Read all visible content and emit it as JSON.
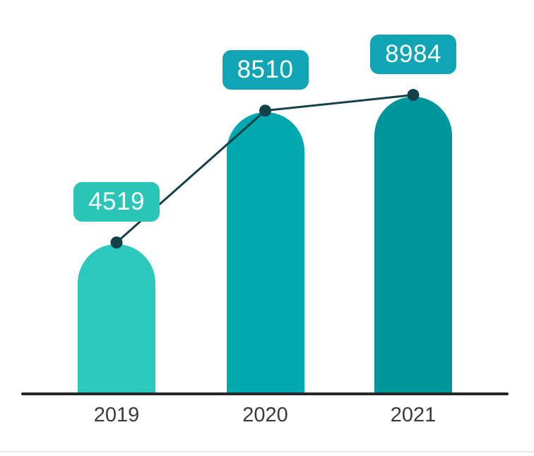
{
  "chart_data": {
    "type": "bar",
    "title": "",
    "categories": [
      "2019",
      "2020",
      "2021"
    ],
    "values": [
      4519,
      8510,
      8984
    ],
    "data_labels": [
      "4519",
      "8510",
      "8984"
    ],
    "xlabel": "",
    "ylabel": "",
    "ylim": [
      0,
      9600
    ],
    "grid": false,
    "legend": false,
    "overlay": "line with dark circular markers connecting bar tops, value badges above each bar",
    "bar_colors": [
      "#2CC8BB",
      "#00A8B0",
      "#00969C"
    ],
    "badge_colors": [
      "#2BC5B8",
      "#10A4B4",
      "#10A4B4"
    ],
    "badge_text_color": "#FFFFFF",
    "line_color": "#14404A",
    "marker_color": "#14404A",
    "axis_line_color": "#262626",
    "tick_label_color": "#3A3A3A",
    "background_color": "#FFFFFF",
    "footer_divider_color": "#E7E7E9"
  }
}
